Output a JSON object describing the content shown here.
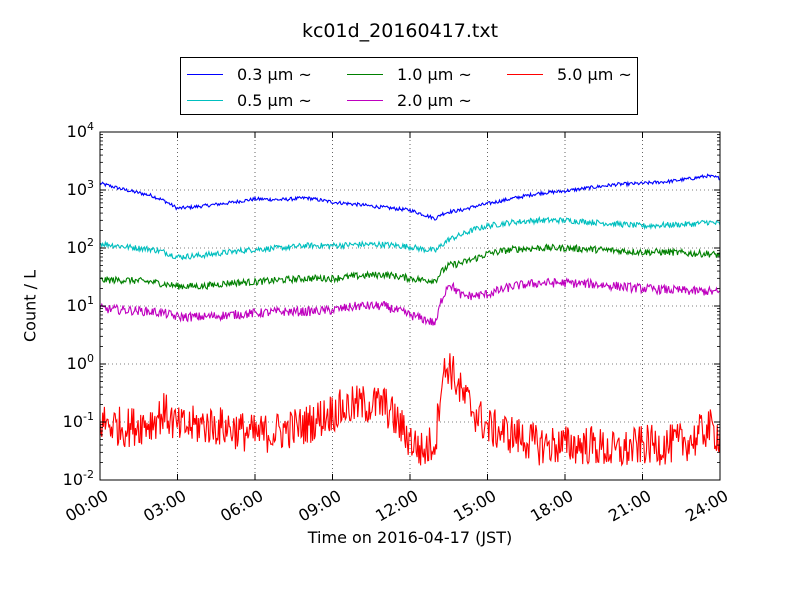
{
  "chart_data": {
    "type": "line",
    "title": "kc01d_20160417.txt",
    "xlabel": "Time on 2016-04-17 (JST)",
    "ylabel": "Count / L",
    "yscale": "log",
    "ylim": [
      0.01,
      10000
    ],
    "xlim": [
      "00:00",
      "24:00"
    ],
    "x_tick_labels": [
      "00:00",
      "03:00",
      "06:00",
      "09:00",
      "12:00",
      "15:00",
      "18:00",
      "21:00",
      "24:00"
    ],
    "y_tick_labels": [
      {
        "base": "10",
        "exp": "-2"
      },
      {
        "base": "10",
        "exp": "-1"
      },
      {
        "base": "10",
        "exp": "0"
      },
      {
        "base": "10",
        "exp": "1"
      },
      {
        "base": "10",
        "exp": "2"
      },
      {
        "base": "10",
        "exp": "3"
      },
      {
        "base": "10",
        "exp": "4"
      }
    ],
    "grid": true,
    "legend_position": "top-center",
    "x_hours": [
      0,
      1,
      2,
      2.5,
      3,
      4,
      5,
      6,
      7,
      8,
      9,
      10,
      11,
      12,
      12.5,
      13,
      13.2,
      13.5,
      14,
      14.5,
      15,
      16,
      17,
      18,
      19,
      20,
      21,
      22,
      23,
      23.5,
      24
    ],
    "series": [
      {
        "name": "0.3 μm ~",
        "color": "#0000ff",
        "values": [
          1300,
          1000,
          800,
          650,
          480,
          530,
          600,
          700,
          680,
          730,
          620,
          560,
          500,
          450,
          380,
          320,
          380,
          420,
          450,
          520,
          580,
          720,
          880,
          960,
          1100,
          1250,
          1300,
          1400,
          1600,
          1750,
          1600
        ]
      },
      {
        "name": "0.5 μm ~",
        "color": "#00bfbf",
        "values": [
          120,
          105,
          95,
          85,
          70,
          75,
          85,
          95,
          100,
          110,
          110,
          115,
          115,
          105,
          95,
          90,
          110,
          140,
          170,
          210,
          240,
          280,
          300,
          300,
          280,
          260,
          240,
          250,
          260,
          280,
          260
        ]
      },
      {
        "name": "1.0 μm ~",
        "color": "#008000",
        "values": [
          28,
          28,
          26,
          24,
          22,
          22,
          25,
          26,
          28,
          30,
          30,
          33,
          35,
          30,
          28,
          28,
          38,
          50,
          55,
          65,
          80,
          95,
          100,
          100,
          95,
          90,
          85,
          85,
          80,
          80,
          75
        ]
      },
      {
        "name": "2.0 μm ~",
        "color": "#bf00bf",
        "values": [
          9,
          8.5,
          8,
          7.5,
          6.5,
          6.5,
          7,
          7.5,
          8,
          8,
          8.5,
          10,
          10,
          7,
          6,
          5,
          12,
          25,
          15,
          15,
          16,
          22,
          25,
          25,
          24,
          22,
          20,
          19,
          18,
          18,
          17
        ]
      },
      {
        "name": "5.0 μm ~",
        "color": "#ff0000",
        "values": [
          0.1,
          0.08,
          0.1,
          0.15,
          0.08,
          0.09,
          0.08,
          0.06,
          0.07,
          0.09,
          0.15,
          0.2,
          0.2,
          0.05,
          0.03,
          0.05,
          0.5,
          1.0,
          0.3,
          0.15,
          0.08,
          0.06,
          0.04,
          0.04,
          0.04,
          0.03,
          0.04,
          0.04,
          0.05,
          0.08,
          0.06
        ]
      }
    ]
  }
}
